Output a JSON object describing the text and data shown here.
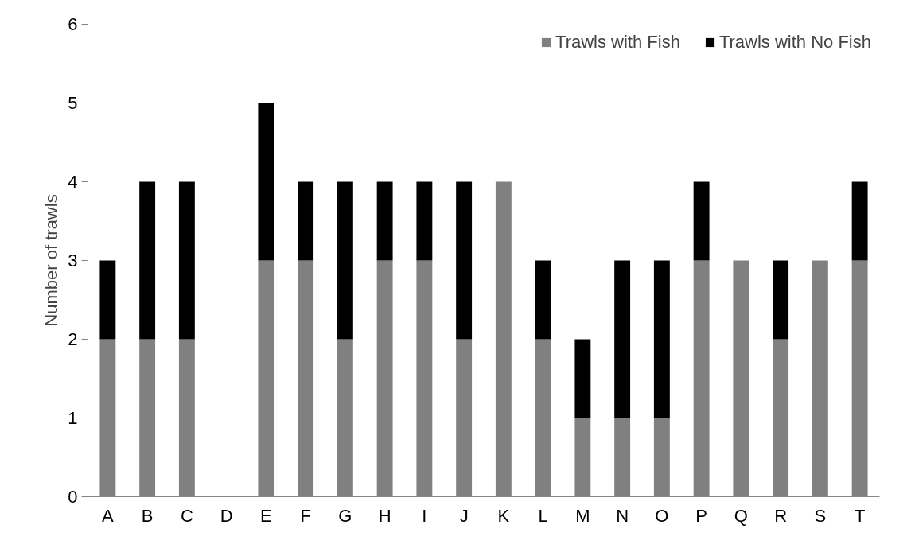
{
  "chart_data": {
    "type": "bar",
    "stacked": true,
    "ylabel": "Number of trawls",
    "categories": [
      "A",
      "B",
      "C",
      "D",
      "E",
      "F",
      "G",
      "H",
      "I",
      "J",
      "K",
      "L",
      "M",
      "N",
      "O",
      "P",
      "Q",
      "R",
      "S",
      "T"
    ],
    "series": [
      {
        "name": "Trawls with Fish",
        "color": "#808080",
        "values": [
          2,
          2,
          2,
          0,
          3,
          3,
          2,
          3,
          3,
          2,
          4,
          2,
          1,
          1,
          1,
          3,
          3,
          2,
          3,
          3
        ]
      },
      {
        "name": "Trawls with No Fish",
        "color": "#000000",
        "values": [
          1,
          2,
          2,
          0,
          2,
          1,
          2,
          1,
          1,
          2,
          0,
          1,
          1,
          2,
          2,
          1,
          0,
          1,
          0,
          1
        ]
      }
    ],
    "ylim": [
      0,
      6
    ],
    "yticks": [
      0,
      1,
      2,
      3,
      4,
      5,
      6
    ],
    "grid": false,
    "legend": "top right"
  }
}
